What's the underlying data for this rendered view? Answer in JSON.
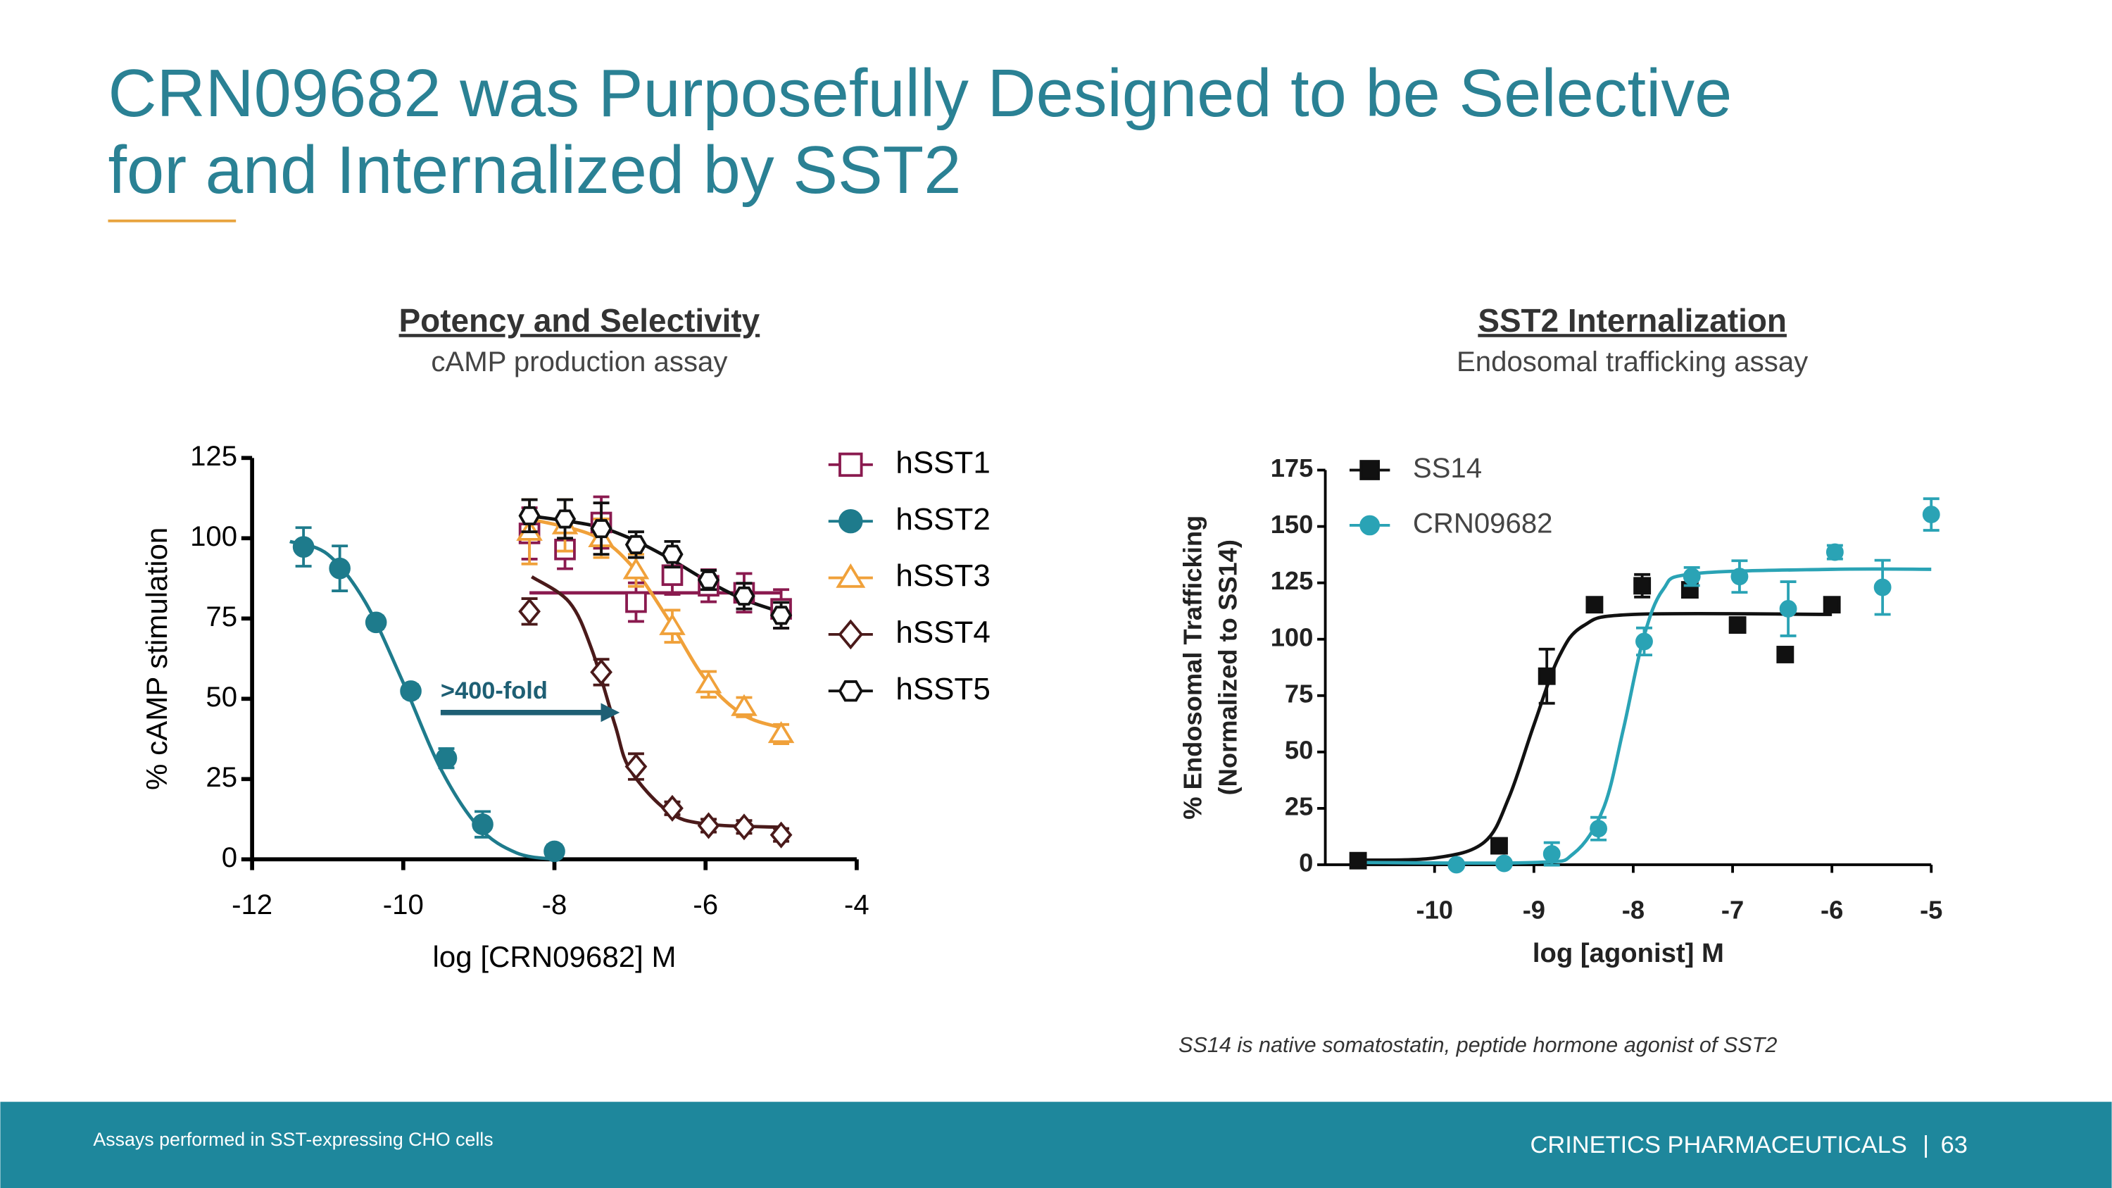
{
  "header": {
    "title_lines": [
      "CRN09682 was Purposefully Designed to be Selective",
      "for and Internalized by SST2"
    ]
  },
  "chart_data": [
    {
      "type": "scatter",
      "title": "Potency and Selectivity",
      "subtitle": "cAMP production assay",
      "x_label": "log [CRN09682] M",
      "y_label": [
        "% cAMP stimulation"
      ],
      "xlim": [
        -12,
        -4
      ],
      "xticks": [
        -12,
        -10,
        -8,
        -6,
        -4
      ],
      "ylim": [
        0,
        125
      ],
      "yticks": [
        0,
        25,
        50,
        75,
        100,
        125
      ],
      "grid": false,
      "legend": "right",
      "annotation": ">400-fold",
      "series": [
        {
          "name": "hSST1",
          "color": "#8a1a4f",
          "marker": "square",
          "filled": false,
          "x": [
            -8.33,
            -7.86,
            -7.38,
            -6.92,
            -6.44,
            -5.96,
            -5.49,
            -5.0
          ],
          "values": [
            101.5,
            96.5,
            104.9,
            80.1,
            88.5,
            85.2,
            83,
            78
          ],
          "errors": [
            8,
            6,
            8,
            6,
            6,
            5,
            6,
            6
          ],
          "fit": {
            "x": [
              -8.33,
              -5.0
            ],
            "values": [
              83,
              83
            ]
          }
        },
        {
          "name": "hSST2",
          "color": "#1e7b8c",
          "marker": "circle",
          "filled": true,
          "x": [
            -11.32,
            -10.84,
            -10.36,
            -9.9,
            -9.43,
            -8.95,
            -8.0
          ],
          "values": [
            97.3,
            90.6,
            73.8,
            52.4,
            31.5,
            10.9,
            2.5
          ],
          "errors": [
            6,
            7,
            2,
            2,
            3,
            4,
            2
          ],
          "fit": {
            "x": [
              -11.5,
              -11,
              -10.5,
              -10,
              -9.5,
              -9,
              -8.5,
              -8
            ],
            "values": [
              99,
              95,
              80,
              55,
              28,
              10,
              2,
              0
            ]
          }
        },
        {
          "name": "hSST3",
          "color": "#f0a13a",
          "marker": "triangle",
          "filled": false,
          "x": [
            -8.33,
            -7.86,
            -7.38,
            -6.92,
            -6.44,
            -5.96,
            -5.49,
            -5.0
          ],
          "values": [
            102,
            104,
            100,
            90,
            72.6,
            54.5,
            47.4,
            39
          ],
          "errors": [
            10,
            8,
            6,
            5,
            5,
            4,
            3,
            3
          ],
          "fit": {
            "x": [
              -8.33,
              -7.5,
              -7,
              -6.5,
              -6,
              -5.5,
              -5
            ],
            "values": [
              106,
              101,
              92,
              75,
              56,
              45,
              41
            ]
          }
        },
        {
          "name": "hSST4",
          "color": "#4a1a1a",
          "marker": "diamond",
          "filled": false,
          "x": [
            -8.33,
            -7.38,
            -6.92,
            -6.44,
            -5.96,
            -5.49,
            -5.0
          ],
          "values": [
            77.2,
            58.3,
            28.9,
            15.9,
            10.5,
            10.1,
            7.6
          ],
          "errors": [
            4,
            4,
            4,
            2,
            2,
            2,
            2
          ],
          "fit": {
            "x": [
              -8.3,
              -7.8,
              -7.5,
              -7.2,
              -7,
              -6.5,
              -6,
              -5
            ],
            "values": [
              88,
              80,
              65,
              42,
              28,
              15,
              11,
              10
            ]
          }
        },
        {
          "name": "hSST5",
          "color": "#111111",
          "marker": "hexagon",
          "filled": false,
          "x": [
            -8.33,
            -7.86,
            -7.38,
            -6.92,
            -6.44,
            -5.96,
            -5.49,
            -5.0
          ],
          "values": [
            107,
            106,
            103,
            98,
            95,
            87,
            82,
            76
          ],
          "errors": [
            5,
            6,
            8,
            4,
            4,
            3,
            4,
            4
          ],
          "fit": {
            "x": [
              -8.33,
              -7.5,
              -7,
              -6.5,
              -6,
              -5.5,
              -5
            ],
            "values": [
              107,
              104,
              100,
              94,
              87,
              81,
              77
            ]
          }
        }
      ]
    },
    {
      "type": "scatter",
      "title": "SST2 Internalization",
      "subtitle": "Endosomal trafficking assay",
      "x_label": "log [agonist] M",
      "y_label": [
        "% Endosomal Trafficking",
        "(Normalized to SS14)"
      ],
      "xlim": [
        -11.1,
        -5
      ],
      "xticks": [
        -10,
        -9,
        -8,
        -7,
        -6,
        -5
      ],
      "ylim": [
        0,
        175
      ],
      "yticks": [
        0,
        25,
        50,
        75,
        100,
        125,
        150,
        175
      ],
      "grid": false,
      "legend": "upper left",
      "series": [
        {
          "name": "SS14",
          "color": "#111111",
          "marker": "square",
          "filled": true,
          "x": [
            -10.77,
            -9.35,
            -8.87,
            -8.39,
            -7.91,
            -7.43,
            -6.95,
            -6.47,
            -6.0
          ],
          "values": [
            1.8,
            8.4,
            83.6,
            115.3,
            123.7,
            121.9,
            106.3,
            93.2,
            115.3
          ],
          "errors": [
            3,
            2,
            12,
            3,
            5,
            3,
            2,
            3,
            2
          ],
          "fit": {
            "x": [
              -10.8,
              -10,
              -9.5,
              -9.25,
              -9,
              -8.75,
              -8.5,
              -8,
              -6
            ],
            "values": [
              2,
              3,
              10,
              30,
              62,
              92,
              106,
              111,
              111
            ]
          }
        },
        {
          "name": "CRN09682",
          "color": "#2aa3b5",
          "marker": "circle",
          "filled": true,
          "x": [
            -9.78,
            -9.3,
            -8.82,
            -8.35,
            -7.89,
            -7.41,
            -6.93,
            -6.44,
            -5.97,
            -5.49,
            -5.0
          ],
          "values": [
            0,
            0.6,
            4.8,
            16,
            99,
            127.8,
            127.8,
            113.5,
            138.6,
            123,
            155.3
          ],
          "errors": [
            1,
            1,
            5,
            5,
            6,
            4,
            7,
            12,
            3,
            12,
            7
          ],
          "fit": {
            "x": [
              -10.8,
              -9,
              -8.6,
              -8.3,
              -8.1,
              -7.9,
              -7.7,
              -7.4,
              -6,
              -5
            ],
            "values": [
              1,
              1,
              5,
              25,
              60,
              100,
              122,
              129,
              131,
              131
            ]
          }
        }
      ]
    }
  ],
  "footnote": "SS14 is native somatostatin, peptide hormone agonist of SST2",
  "footer": {
    "note": "Assays performed in SST-expressing CHO cells",
    "company": "CRINETICS PHARMACEUTICALS",
    "separator": "|",
    "page": "63"
  }
}
